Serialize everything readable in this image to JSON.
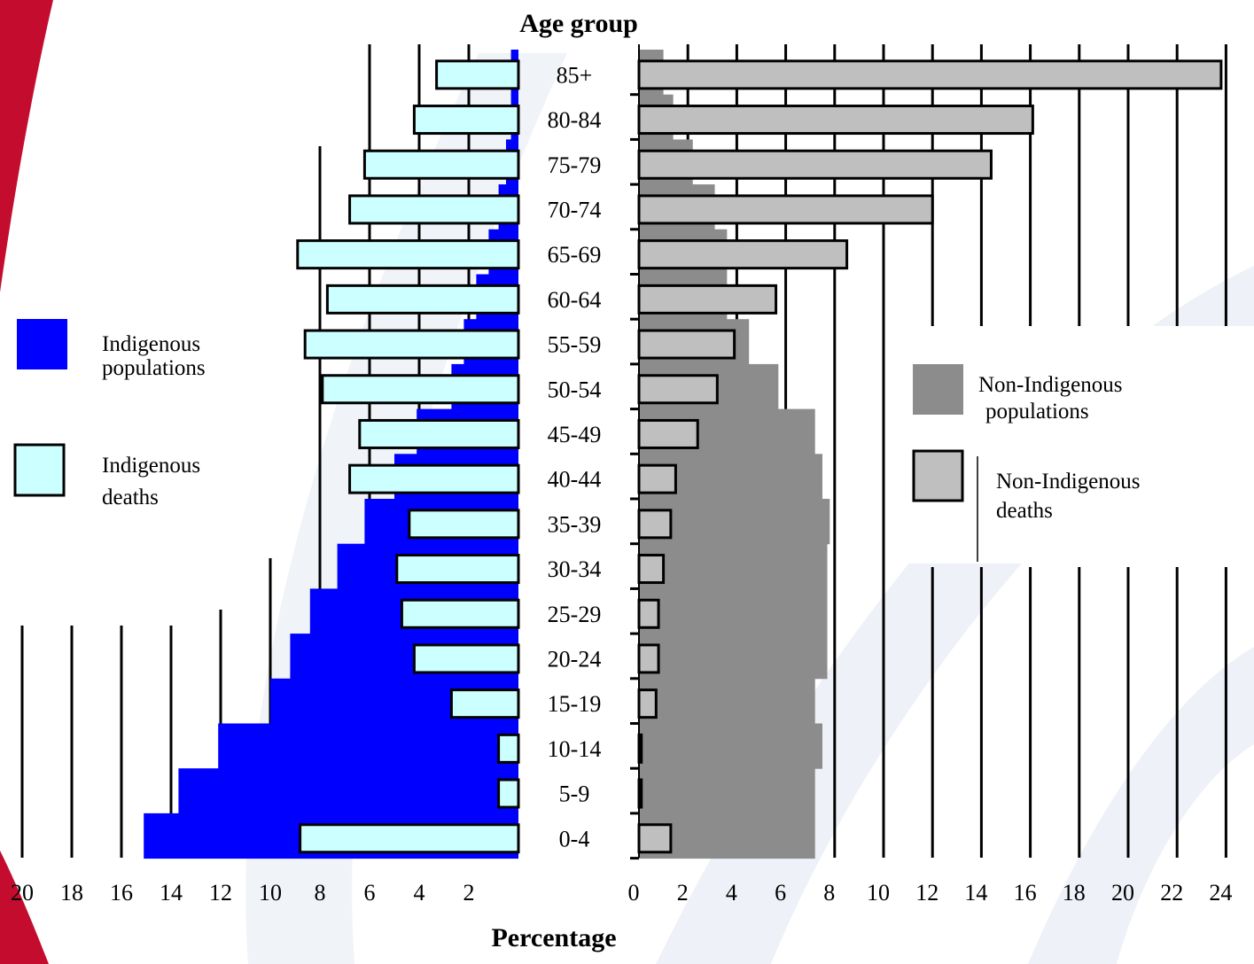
{
  "chart_data": {
    "type": "bar",
    "title": "Age group",
    "xlabel": "Percentage",
    "categories": [
      "85+",
      "80-84",
      "75-79",
      "70-74",
      "65-69",
      "60-64",
      "55-59",
      "50-54",
      "45-49",
      "40-44",
      "35-39",
      "30-34",
      "25-29",
      "20-24",
      "15-19",
      "10-14",
      "5-9",
      "0-4"
    ],
    "left_axis": {
      "ticks": [
        "20",
        "18",
        "16",
        "14",
        "12",
        "10",
        "8",
        "6",
        "4",
        "2"
      ],
      "ylim": [
        0,
        20
      ]
    },
    "right_axis": {
      "ticks": [
        "0",
        "2",
        "4",
        "6",
        "8",
        "10",
        "12",
        "14",
        "16",
        "18",
        "20",
        "22",
        "24"
      ],
      "ylim": [
        0,
        24
      ]
    },
    "series": [
      {
        "name": "Indigenous populations",
        "side": "left",
        "color": "#0000ff",
        "values": [
          0.3,
          0.3,
          0.5,
          0.8,
          1.2,
          1.7,
          2.2,
          2.7,
          4.1,
          5.0,
          6.2,
          7.3,
          8.4,
          9.2,
          10.0,
          12.1,
          13.7,
          15.1
        ]
      },
      {
        "name": "Indigenous deaths",
        "side": "left",
        "color": "#ccffff",
        "values": [
          3.3,
          4.2,
          6.2,
          6.8,
          8.9,
          7.7,
          8.6,
          7.9,
          6.4,
          6.8,
          4.4,
          4.9,
          4.7,
          4.2,
          2.7,
          0.8,
          0.8,
          8.8
        ]
      },
      {
        "name": "Non-Indigenous populations",
        "side": "right",
        "color": "#8c8c8c",
        "values": [
          1.0,
          1.4,
          2.2,
          3.1,
          3.6,
          3.6,
          4.5,
          5.7,
          7.2,
          7.5,
          7.8,
          7.7,
          7.7,
          7.7,
          7.2,
          7.5,
          7.2,
          7.2
        ]
      },
      {
        "name": "Non-Indigenous deaths",
        "side": "right",
        "color": "#bfbfbf",
        "values": [
          23.8,
          16.1,
          14.4,
          12.0,
          8.5,
          5.6,
          3.9,
          3.2,
          2.4,
          1.5,
          1.3,
          1.0,
          0.8,
          0.8,
          0.7,
          0.1,
          0.1,
          1.3
        ]
      }
    ],
    "legend": {
      "left": [
        "Indigenous populations",
        "Indigenous deaths"
      ],
      "right": [
        "Non-Indigenous populations",
        "Non-Indigenous deaths"
      ]
    }
  }
}
